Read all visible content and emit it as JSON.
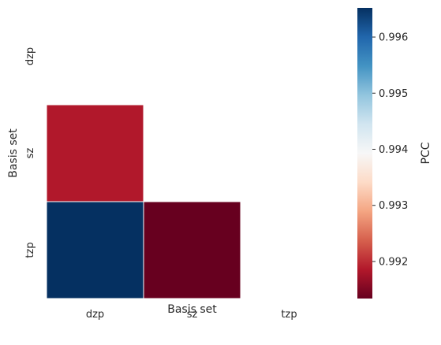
{
  "chart_data": {
    "type": "heatmap",
    "title": "",
    "xlabel": "Basis set",
    "ylabel": "Basis set",
    "x_categories": [
      "dzp",
      "sz",
      "tzp"
    ],
    "y_categories": [
      "dzp",
      "sz",
      "tzp"
    ],
    "values": [
      [
        null,
        null,
        null
      ],
      [
        0.99185,
        null,
        null
      ],
      [
        0.99652,
        0.99134,
        null
      ]
    ],
    "mask": "upper-triangle-including-diagonal",
    "colormap": "RdBu",
    "vmin": 0.99134,
    "vmax": 0.99652,
    "colorbar": {
      "label": "PCC",
      "ticks": [
        0.992,
        0.993,
        0.994,
        0.995,
        0.996
      ],
      "tick_labels": [
        "0.992",
        "0.993",
        "0.994",
        "0.995",
        "0.996"
      ]
    },
    "colors": [
      "#67001f",
      "#b2182b",
      "#d6604d",
      "#f4a582",
      "#fddbc7",
      "#f7f7f7",
      "#d1e5f0",
      "#92c5de",
      "#4393c3",
      "#2166ac",
      "#053061"
    ]
  }
}
